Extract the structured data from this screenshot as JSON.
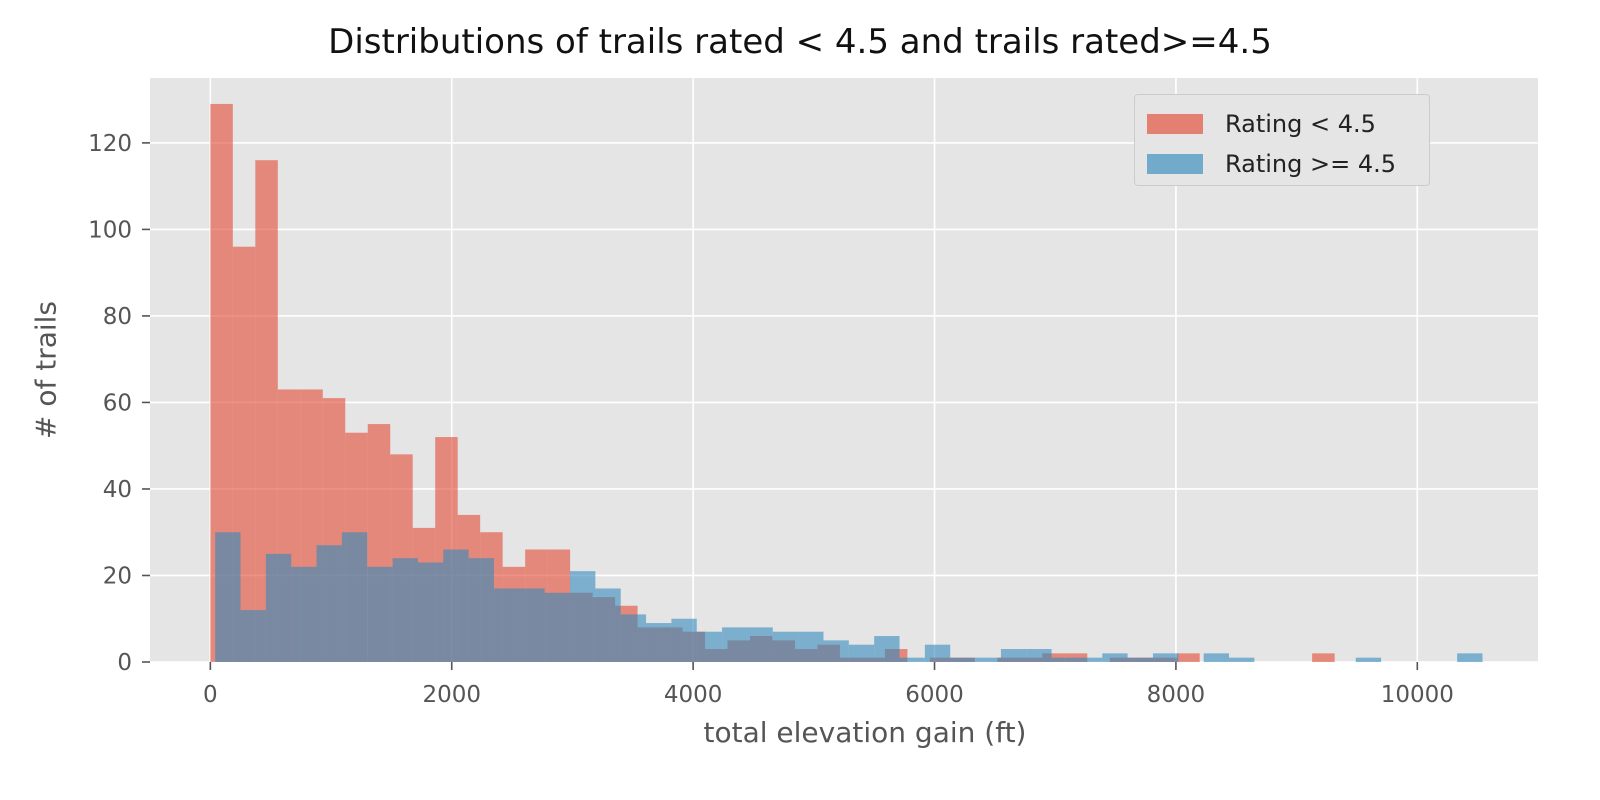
{
  "chart_data": {
    "type": "bar",
    "subtype": "overlaid-histogram",
    "title": "Distributions of trails rated < 4.5 and trails rated>=4.5",
    "xlabel": "total elevation gain (ft)",
    "ylabel": "# of trails",
    "xlim": [
      -500,
      11000
    ],
    "ylim": [
      0,
      135
    ],
    "xticks": [
      0,
      2000,
      4000,
      6000,
      8000,
      10000
    ],
    "yticks": [
      0,
      20,
      40,
      60,
      80,
      100,
      120
    ],
    "grid": true,
    "legend_position": "top-right",
    "series": [
      {
        "name": "Rating < 4.5",
        "color": "#e24a33",
        "bin_edges": [
          0,
          186.3,
          372.6,
          558.9,
          745.2,
          931.5,
          1117.8,
          1304.1,
          1490.4,
          1676.7,
          1863.0,
          2049.3,
          2235.6,
          2421.9,
          2608.2,
          2794.5,
          2980.8,
          3167.1,
          3353.4,
          3539.7,
          3726.0,
          3912.3,
          4098.6,
          4284.9,
          4471.2,
          4657.5,
          4843.8,
          5030.1,
          5216.4,
          5402.7,
          5589.0,
          5775.3,
          5961.6,
          6147.9,
          6334.2,
          6520.5,
          6706.8,
          6893.1,
          7079.4,
          7265.7,
          7452.0,
          7638.3,
          7824.6,
          8010.9,
          8197.2,
          8383.5,
          8569.8,
          8756.1,
          8942.4,
          9128.7,
          9315.0
        ],
        "counts": [
          129,
          96,
          116,
          63,
          63,
          61,
          53,
          55,
          48,
          31,
          52,
          34,
          30,
          22,
          26,
          26,
          16,
          15,
          13,
          8,
          8,
          7,
          3,
          5,
          6,
          5,
          3,
          4,
          1,
          1,
          3,
          0,
          1,
          1,
          0,
          1,
          1,
          2,
          2,
          0,
          1,
          1,
          1,
          2,
          0,
          0,
          0,
          0,
          0,
          2
        ]
      },
      {
        "name": "Rating >= 4.5",
        "color": "#348abd",
        "bin_edges": [
          40,
          250,
          460,
          670,
          880,
          1090,
          1300,
          1510,
          1720,
          1930,
          2140,
          2350,
          2560,
          2770,
          2980,
          3190,
          3400,
          3610,
          3820,
          4030,
          4240,
          4450,
          4660,
          4870,
          5080,
          5290,
          5500,
          5710,
          5920,
          6130,
          6340,
          6550,
          6760,
          6970,
          7180,
          7390,
          7600,
          7810,
          8020,
          8230,
          8440,
          8650,
          8860,
          9070,
          9280,
          9490,
          9700,
          9910,
          10120,
          10330,
          10540
        ],
        "counts": [
          30,
          12,
          25,
          22,
          27,
          30,
          22,
          24,
          23,
          26,
          24,
          17,
          17,
          16,
          21,
          17,
          11,
          9,
          10,
          7,
          8,
          8,
          7,
          7,
          5,
          4,
          6,
          1,
          4,
          1,
          1,
          3,
          3,
          1,
          1,
          2,
          1,
          2,
          0,
          2,
          1,
          0,
          0,
          0,
          0,
          1,
          0,
          0,
          0,
          2
        ]
      }
    ]
  }
}
